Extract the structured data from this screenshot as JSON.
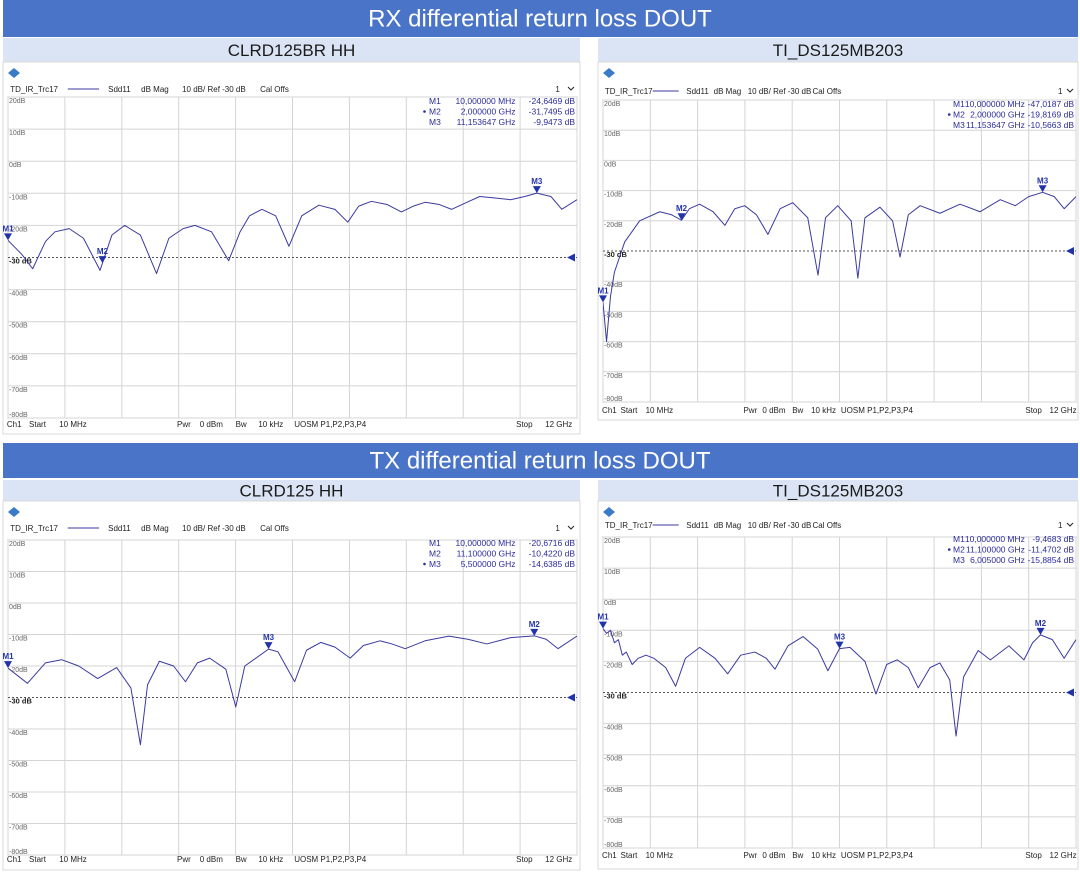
{
  "banners": [
    "RX differential return loss DOUT",
    "TX differential return loss DOUT"
  ],
  "chart_data": [
    {
      "type": "line",
      "title": "CLRD125BR HH",
      "header": [
        "Sdd11",
        "dB Mag",
        "10 dB/ Ref -30 dB",
        "Cal Offs"
      ],
      "channel": "1",
      "footer": [
        "Ch1",
        "Start",
        "10 MHz",
        "Pwr",
        "0 dBm",
        "Bw",
        "10 kHz",
        "UOSM P1,P2,P3,P4",
        "Stop",
        "12 GHz"
      ],
      "xlim": [
        0.01,
        12
      ],
      "xticks": [
        0.01,
        1.209,
        2.408,
        3.607,
        4.806,
        6.005,
        7.204,
        8.403,
        9.602,
        10.801,
        12
      ],
      "ylim": [
        -80,
        20
      ],
      "yticks": [
        {
          "value": 20,
          "label": "20dB"
        },
        {
          "value": 10,
          "label": "10dB"
        },
        {
          "value": 0,
          "label": "0dB"
        },
        {
          "value": -10,
          "label": "-10dB"
        },
        {
          "value": -20,
          "label": "-20dB"
        },
        {
          "value": -30,
          "label": "-30 dB"
        },
        {
          "value": -40,
          "label": "-40dB"
        },
        {
          "value": -50,
          "label": "-50dB"
        },
        {
          "value": -60,
          "label": "-60dB"
        },
        {
          "value": -70,
          "label": "-70dB"
        },
        {
          "value": -80,
          "label": "-80dB"
        }
      ],
      "grid": true,
      "ref_level": -30,
      "x": [
        0.01,
        0.3,
        0.53,
        0.8,
        1.0,
        1.3,
        1.6,
        1.95,
        2.0,
        2.2,
        2.47,
        2.8,
        3.14,
        3.4,
        3.7,
        3.95,
        4.3,
        4.66,
        4.9,
        5.1,
        5.36,
        5.65,
        5.93,
        6.2,
        6.56,
        6.9,
        7.17,
        7.4,
        7.67,
        8.0,
        8.3,
        8.55,
        8.8,
        9.1,
        9.36,
        9.65,
        9.95,
        10.3,
        10.6,
        10.9,
        11.153647,
        11.45,
        11.68,
        12
      ],
      "series": [
        {
          "name": "TD_IR_Trc17",
          "color": "#3a3aa0",
          "values": [
            -24.6469,
            -29,
            -33.5,
            -25,
            -22,
            -21,
            -24,
            -34,
            -31.7495,
            -23,
            -20,
            -23,
            -35,
            -24,
            -21,
            -20,
            -22,
            -31,
            -22,
            -17,
            -15,
            -17,
            -26.5,
            -17,
            -13.7,
            -15,
            -19,
            -14,
            -12.5,
            -13.5,
            -15.8,
            -14,
            -12.8,
            -13.5,
            -15,
            -13,
            -11,
            -11.5,
            -12,
            -11,
            -9.9473,
            -11,
            -15,
            -12
          ]
        }
      ],
      "markers": [
        {
          "name": "M1",
          "x": 0.01,
          "x_label": "10,000000  MHz",
          "y": -24.6469,
          "y_label": "-24,6469  dB",
          "active": false
        },
        {
          "name": "M2",
          "x": 2.0,
          "x_label": "2,000000  GHz",
          "y": -31.7495,
          "y_label": "-31,7495  dB",
          "active": true
        },
        {
          "name": "M3",
          "x": 11.153647,
          "x_label": "11,153647  GHz",
          "y": -9.9473,
          "y_label": "-9,9473  dB",
          "active": false
        }
      ]
    },
    {
      "type": "line",
      "title": "TI_DS125MB203",
      "header": [
        "Sdd11",
        "dB Mag",
        "10 dB/ Ref -30 dB",
        "Cal Offs"
      ],
      "channel": "1",
      "footer": [
        "Ch1",
        "Start",
        "10 MHz",
        "Pwr",
        "0 dBm",
        "Bw",
        "10 kHz",
        "UOSM P1,P2,P3,P4",
        "Stop",
        "12 GHz"
      ],
      "xlim": [
        0.01,
        12
      ],
      "xticks": [
        0.01,
        1.209,
        2.408,
        3.607,
        4.806,
        6.005,
        7.204,
        8.403,
        9.602,
        10.801,
        12
      ],
      "ylim": [
        -80,
        20
      ],
      "yticks": [
        {
          "value": 20,
          "label": "20dB"
        },
        {
          "value": 10,
          "label": "10dB"
        },
        {
          "value": 0,
          "label": "0dB"
        },
        {
          "value": -10,
          "label": "-10dB"
        },
        {
          "value": -20,
          "label": "-20dB"
        },
        {
          "value": -30,
          "label": "-30 dB"
        },
        {
          "value": -40,
          "label": "-40dB"
        },
        {
          "value": -50,
          "label": "-50dB"
        },
        {
          "value": -60,
          "label": "-60dB"
        },
        {
          "value": -70,
          "label": "-70dB"
        },
        {
          "value": -80,
          "label": "-80dB"
        }
      ],
      "grid": true,
      "ref_level": -30,
      "x": [
        0.01,
        0.1,
        0.2,
        0.3,
        0.56,
        0.94,
        1.45,
        1.75,
        2.0,
        2.2,
        2.46,
        2.8,
        3.1,
        3.35,
        3.6,
        3.9,
        4.19,
        4.5,
        4.82,
        5.2,
        5.46,
        5.65,
        5.96,
        6.3,
        6.47,
        6.65,
        7.03,
        7.35,
        7.54,
        7.75,
        8.05,
        8.55,
        9.06,
        9.57,
        10.08,
        10.46,
        10.8,
        11.153647,
        11.45,
        11.7,
        12
      ],
      "series": [
        {
          "name": "TD_IR_Trc17",
          "color": "#3a3aa0",
          "values": [
            -47.0187,
            -60,
            -45,
            -37,
            -27,
            -20,
            -17,
            -18,
            -19.8169,
            -16,
            -14.5,
            -17,
            -21.5,
            -16,
            -15,
            -18,
            -24.5,
            -16,
            -14,
            -19,
            -38,
            -19,
            -15,
            -20,
            -39,
            -19,
            -15.5,
            -20,
            -32,
            -18,
            -15,
            -17.5,
            -14.5,
            -17,
            -13,
            -15,
            -12,
            -10.5663,
            -12,
            -16,
            -12
          ]
        }
      ],
      "markers": [
        {
          "name": "M1",
          "x": 0.01,
          "x_label": "10,000000  MHz",
          "y": -47.0187,
          "y_label": "-47,0187  dB",
          "active": false
        },
        {
          "name": "M2",
          "x": 2.0,
          "x_label": "2,000000  GHz",
          "y": -19.8169,
          "y_label": "-19,8169  dB",
          "active": true
        },
        {
          "name": "M3",
          "x": 11.153647,
          "x_label": "11,153647  GHz",
          "y": -10.5663,
          "y_label": "-10,5663  dB",
          "active": false
        }
      ]
    },
    {
      "type": "line",
      "title": "CLRD125 HH",
      "header": [
        "Sdd11",
        "dB Mag",
        "10 dB/ Ref -30 dB",
        "Cal Offs"
      ],
      "channel": "1",
      "footer": [
        "Ch1",
        "Start",
        "10 MHz",
        "Pwr",
        "0 dBm",
        "Bw",
        "10 kHz",
        "UOSM P1,P2,P3,P4",
        "Stop",
        "12 GHz"
      ],
      "xlim": [
        0.01,
        12
      ],
      "xticks": [
        0.01,
        1.209,
        2.408,
        3.607,
        4.806,
        6.005,
        7.204,
        8.403,
        9.602,
        10.801,
        12
      ],
      "ylim": [
        -80,
        20
      ],
      "yticks": [
        {
          "value": 20,
          "label": "20dB"
        },
        {
          "value": 10,
          "label": "10dB"
        },
        {
          "value": 0,
          "label": "0dB"
        },
        {
          "value": -10,
          "label": "-10dB"
        },
        {
          "value": -20,
          "label": "-20dB"
        },
        {
          "value": -30,
          "label": "-30 dB"
        },
        {
          "value": -40,
          "label": "-40dB"
        },
        {
          "value": -50,
          "label": "-50dB"
        },
        {
          "value": -60,
          "label": "-60dB"
        },
        {
          "value": -70,
          "label": "-70dB"
        },
        {
          "value": -80,
          "label": "-80dB"
        }
      ],
      "grid": true,
      "ref_level": -30,
      "x": [
        0.01,
        0.42,
        0.8,
        1.14,
        1.5,
        1.9,
        2.3,
        2.6,
        2.8,
        2.95,
        3.2,
        3.5,
        3.75,
        4.0,
        4.26,
        4.6,
        4.81,
        5.0,
        5.5,
        5.7,
        6.05,
        6.3,
        6.6,
        6.9,
        7.22,
        7.5,
        7.85,
        8.1,
        8.38,
        8.8,
        9.3,
        9.7,
        10.1,
        10.6,
        11.1,
        11.35,
        11.6,
        12
      ],
      "series": [
        {
          "name": "TD_IR_Trc17",
          "color": "#3a3aa0",
          "values": [
            -20.6716,
            -25.5,
            -19,
            -18,
            -20,
            -24,
            -20.5,
            -27,
            -45,
            -26,
            -18.5,
            -20,
            -25,
            -19,
            -17.5,
            -21,
            -33,
            -20,
            -14.6385,
            -15.5,
            -25,
            -15,
            -12.5,
            -14,
            -17.5,
            -13.5,
            -12,
            -13,
            -14.5,
            -12,
            -10.5,
            -11.5,
            -13,
            -11,
            -10.422,
            -11.5,
            -14.5,
            -10.5
          ]
        }
      ],
      "markers": [
        {
          "name": "M1",
          "x": 0.01,
          "x_label": "10,000000  MHz",
          "y": -20.6716,
          "y_label": "-20,6716  dB",
          "active": false
        },
        {
          "name": "M2",
          "x": 11.1,
          "x_label": "11,100000  GHz",
          "y": -10.422,
          "y_label": "-10,4220  dB",
          "active": false
        },
        {
          "name": "M3",
          "x": 5.5,
          "x_label": "5,500000  GHz",
          "y": -14.6385,
          "y_label": "-14,6385  dB",
          "active": true
        }
      ]
    },
    {
      "type": "line",
      "title": "TI_DS125MB203",
      "header": [
        "Sdd11",
        "dB Mag",
        "10 dB/ Ref -30 dB",
        "Cal Offs"
      ],
      "channel": "1",
      "footer": [
        "Ch1",
        "Start",
        "10 MHz",
        "Pwr",
        "0 dBm",
        "Bw",
        "10 kHz",
        "UOSM P1,P2,P3,P4",
        "Stop",
        "12 GHz"
      ],
      "xlim": [
        0.01,
        12
      ],
      "xticks": [
        0.01,
        1.209,
        2.408,
        3.607,
        4.806,
        6.005,
        7.204,
        8.403,
        9.602,
        10.801,
        12
      ],
      "ylim": [
        -80,
        20
      ],
      "yticks": [
        {
          "value": 20,
          "label": "20dB"
        },
        {
          "value": 10,
          "label": "10dB"
        },
        {
          "value": 0,
          "label": "0dB"
        },
        {
          "value": -10,
          "label": "-10dB"
        },
        {
          "value": -20,
          "label": "-20dB"
        },
        {
          "value": -30,
          "label": "-30 dB"
        },
        {
          "value": -40,
          "label": "-40dB"
        },
        {
          "value": -50,
          "label": "-50dB"
        },
        {
          "value": -60,
          "label": "-60dB"
        },
        {
          "value": -70,
          "label": "-70dB"
        },
        {
          "value": -80,
          "label": "-80dB"
        }
      ],
      "grid": true,
      "ref_level": -30,
      "x": [
        0.01,
        0.1,
        0.2,
        0.3,
        0.4,
        0.5,
        0.6,
        0.75,
        0.9,
        1.1,
        1.3,
        1.6,
        1.85,
        2.1,
        2.46,
        2.85,
        3.17,
        3.5,
        3.86,
        4.15,
        4.37,
        4.7,
        5.08,
        5.45,
        5.71,
        6.005,
        6.27,
        6.65,
        6.93,
        7.2,
        7.47,
        7.75,
        8.0,
        8.3,
        8.55,
        8.8,
        8.96,
        9.15,
        9.52,
        9.83,
        10.3,
        10.68,
        10.9,
        11.1,
        11.4,
        11.7,
        12
      ],
      "series": [
        {
          "name": "TD_IR_Trc17",
          "color": "#3a3aa0",
          "values": [
            -9.4683,
            -11,
            -10,
            -14,
            -13,
            -18,
            -17,
            -21,
            -19,
            -18,
            -19,
            -22,
            -28,
            -19,
            -15.5,
            -19,
            -24,
            -18,
            -17,
            -19,
            -22.5,
            -15,
            -12,
            -16,
            -23,
            -15.8854,
            -15.5,
            -20,
            -30.5,
            -21,
            -19.5,
            -22,
            -28.5,
            -22,
            -20.5,
            -26,
            -44,
            -25,
            -16.5,
            -19.5,
            -15,
            -19.5,
            -14,
            -11.4702,
            -13,
            -19,
            -13
          ]
        }
      ],
      "markers": [
        {
          "name": "M1",
          "x": 0.01,
          "x_label": "10,000000  MHz",
          "y": -9.4683,
          "y_label": "-9,4683  dB",
          "active": false
        },
        {
          "name": "M2",
          "x": 11.1,
          "x_label": "11,100000  GHz",
          "y": -11.4702,
          "y_label": "-11,4702  dB",
          "active": true
        },
        {
          "name": "M3",
          "x": 6.005,
          "x_label": "6,005000  GHz",
          "y": -15.8854,
          "y_label": "-15,8854  dB",
          "active": false
        }
      ]
    }
  ]
}
